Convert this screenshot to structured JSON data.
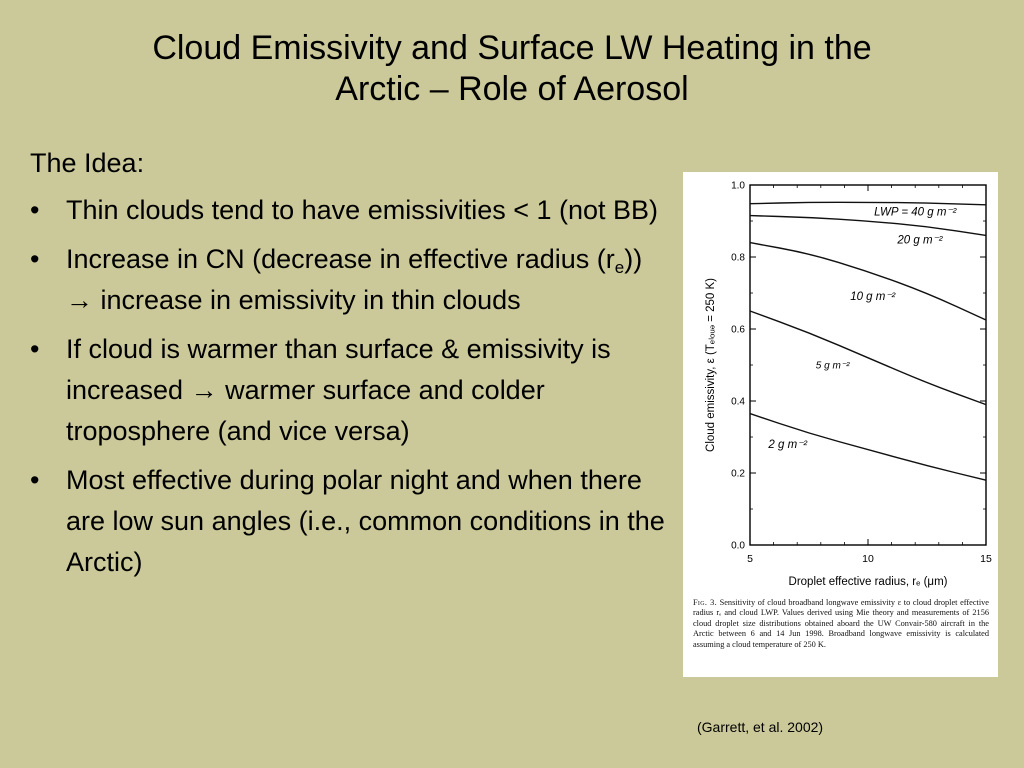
{
  "slide": {
    "title_line1": "Cloud Emissivity and Surface LW Heating in the",
    "title_line2": "Arctic – Role of Aerosol",
    "lead": "The Idea:",
    "bullet_symbol": "•",
    "bullets": [
      {
        "text": "Thin clouds tend to have emissivities < 1 (not BB)"
      },
      {
        "part1": "Increase in CN (decrease in effective radius (r",
        "sub": "e",
        "part2": ")) → increase in emissivity in thin clouds"
      },
      {
        "text": "If cloud is warmer than surface & emissivity is increased → warmer surface and colder troposphere (and vice versa)"
      },
      {
        "text": "Most effective during polar night and when there are low sun angles (i.e., common conditions in the Arctic)"
      }
    ],
    "citation": "(Garrett, et al. 2002)"
  },
  "figure": {
    "caption_label": "Fig. 3.",
    "caption": "Sensitivity of cloud broadband longwave emissivity ε to cloud droplet effective radius rₑ and cloud LWP. Values derived using Mie theory and measurements of 2156 cloud droplet size distributions obtained aboard the UW Convair-580 aircraft in the Arctic between 6 and 14 Jun 1998. Broadband longwave emissivity is calculated assuming a cloud temperature of 250 K."
  },
  "chart_data": {
    "type": "line",
    "xlabel": "Droplet effective radius, rₑ (μm)",
    "ylabel": "Cloud emissivity, ε (Tₑₗₒᵤₔ = 250 K)",
    "xlim": [
      5,
      15
    ],
    "ylim": [
      0.0,
      1.0
    ],
    "x_ticks": [
      5,
      10,
      15
    ],
    "y_ticks": [
      "0.0",
      "0.2",
      "0.4",
      "0.6",
      "0.8",
      "1.0"
    ],
    "grid": false,
    "legend": "inline labels",
    "series": [
      {
        "name": "LWP = 40 g m⁻²",
        "x": [
          5,
          7.5,
          10,
          12.5,
          15
        ],
        "y": [
          0.948,
          0.952,
          0.952,
          0.95,
          0.945
        ]
      },
      {
        "name": "20 g m⁻²",
        "x": [
          5,
          7.5,
          10,
          12.5,
          15
        ],
        "y": [
          0.915,
          0.91,
          0.9,
          0.885,
          0.86
        ]
      },
      {
        "name": "10 g m⁻²",
        "x": [
          5,
          7.5,
          10,
          12.5,
          15
        ],
        "y": [
          0.84,
          0.81,
          0.76,
          0.7,
          0.625
        ]
      },
      {
        "name": "5 g m⁻²",
        "x": [
          5,
          7.5,
          10,
          12.5,
          15
        ],
        "y": [
          0.65,
          0.59,
          0.52,
          0.45,
          0.39
        ]
      },
      {
        "name": "2 g m⁻²",
        "x": [
          5,
          7.5,
          10,
          12.5,
          15
        ],
        "y": [
          0.365,
          0.31,
          0.265,
          0.22,
          0.18
        ]
      }
    ]
  }
}
